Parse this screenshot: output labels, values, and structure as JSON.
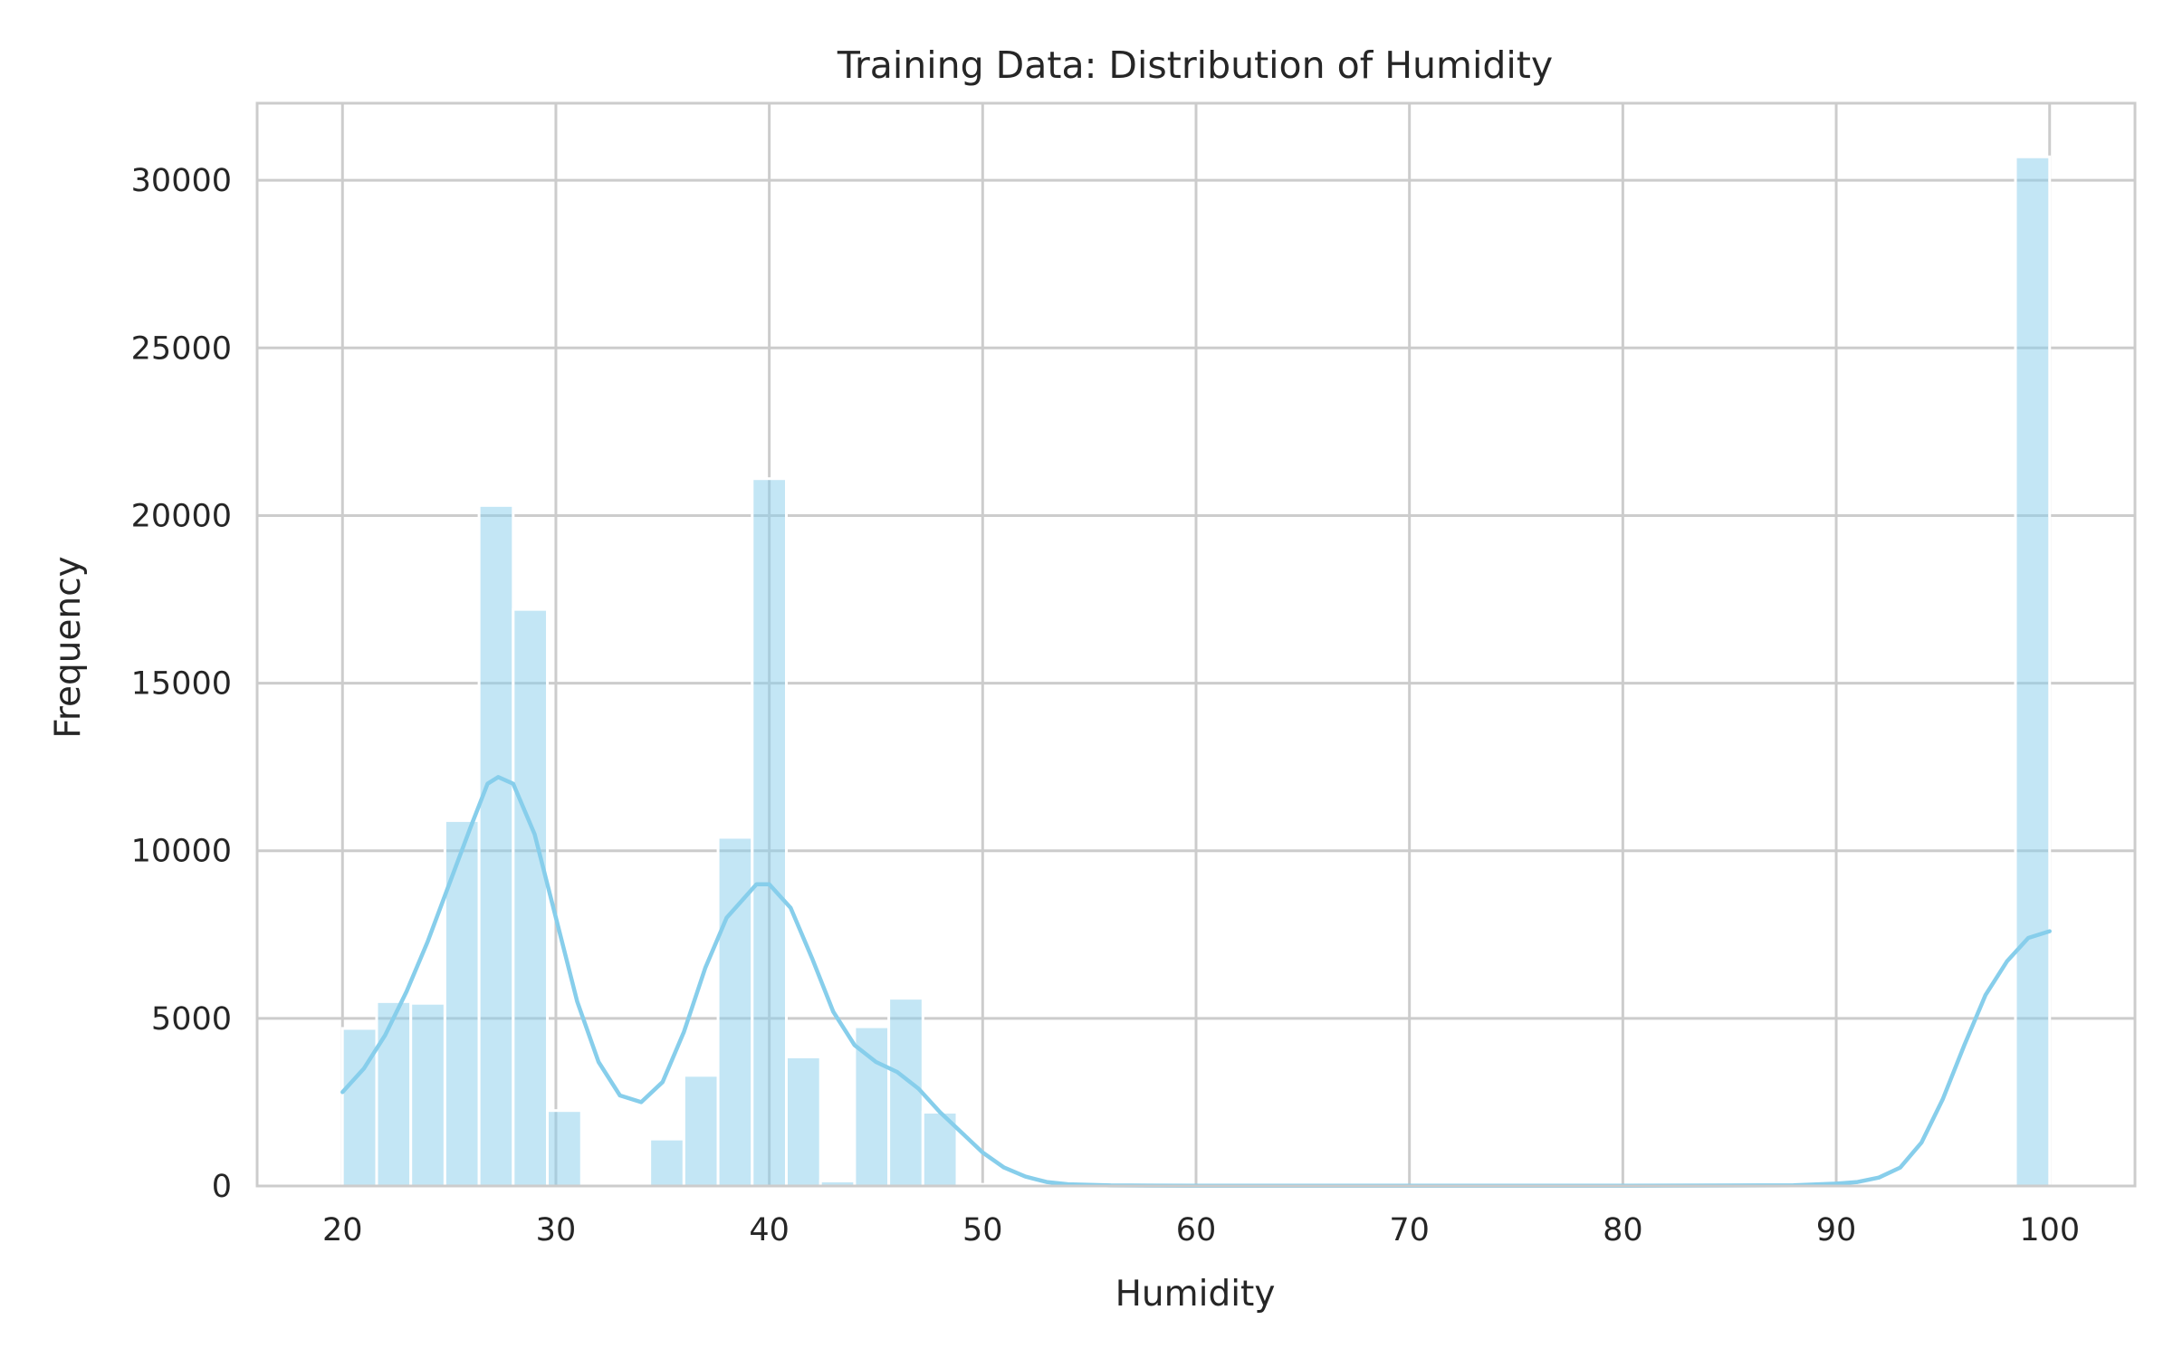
{
  "chart_data": {
    "type": "bar",
    "subtype": "histogram-with-kde",
    "title": "Training Data: Distribution of Humidity",
    "xlabel": "Humidity",
    "ylabel": "Frequency",
    "xlim": [
      16,
      104
    ],
    "ylim": [
      0,
      32300
    ],
    "xticks": [
      20,
      30,
      40,
      50,
      60,
      70,
      80,
      90,
      100
    ],
    "yticks": [
      0,
      5000,
      10000,
      15000,
      20000,
      25000,
      30000
    ],
    "grid": true,
    "legend": "none",
    "bar_color": "#87ceeb",
    "bins": {
      "start": 20.0,
      "width": 1.6,
      "counts": [
        4700,
        5500,
        5450,
        10900,
        20300,
        17200,
        2250,
        0,
        0,
        1400,
        3300,
        10400,
        21100,
        3850,
        150,
        4750,
        5600,
        2200,
        50,
        0,
        0,
        0,
        0,
        0,
        0,
        0,
        0,
        0,
        0,
        0,
        0,
        0,
        0,
        0,
        0,
        0,
        0,
        0,
        0,
        0,
        0,
        0,
        0,
        0,
        0,
        0,
        0,
        0,
        0,
        30700
      ]
    },
    "kde": {
      "color": "#87ceeb",
      "points": [
        [
          20,
          2800
        ],
        [
          21,
          3500
        ],
        [
          22,
          4500
        ],
        [
          23,
          5800
        ],
        [
          24,
          7300
        ],
        [
          25,
          9000
        ],
        [
          26,
          10700
        ],
        [
          26.8,
          12000
        ],
        [
          27.3,
          12200
        ],
        [
          28,
          12000
        ],
        [
          29,
          10500
        ],
        [
          30,
          8000
        ],
        [
          31,
          5500
        ],
        [
          32,
          3700
        ],
        [
          33,
          2700
        ],
        [
          34,
          2500
        ],
        [
          35,
          3100
        ],
        [
          36,
          4600
        ],
        [
          37,
          6500
        ],
        [
          38,
          8000
        ],
        [
          39.4,
          9000
        ],
        [
          40,
          9000
        ],
        [
          41,
          8300
        ],
        [
          42,
          6800
        ],
        [
          43,
          5200
        ],
        [
          44,
          4200
        ],
        [
          45,
          3700
        ],
        [
          46,
          3400
        ],
        [
          47,
          2900
        ],
        [
          48,
          2200
        ],
        [
          49,
          1600
        ],
        [
          50,
          1000
        ],
        [
          51,
          550
        ],
        [
          52,
          280
        ],
        [
          53,
          120
        ],
        [
          54,
          50
        ],
        [
          56,
          15
        ],
        [
          60,
          5
        ],
        [
          70,
          5
        ],
        [
          80,
          5
        ],
        [
          88,
          20
        ],
        [
          90,
          70
        ],
        [
          91,
          120
        ],
        [
          92,
          250
        ],
        [
          93,
          550
        ],
        [
          94,
          1300
        ],
        [
          95,
          2600
        ],
        [
          96,
          4200
        ],
        [
          97,
          5700
        ],
        [
          98,
          6700
        ],
        [
          99,
          7400
        ],
        [
          100,
          7600
        ]
      ]
    }
  }
}
